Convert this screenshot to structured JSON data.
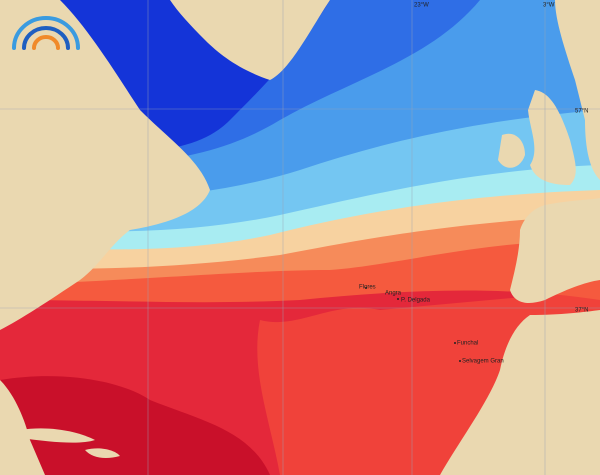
{
  "map": {
    "grid_labels": [
      "23°W",
      "3°W",
      "57°N",
      "37°N"
    ],
    "place_labels": [
      "Flores",
      "Angra",
      "P. Delgada",
      "Funchal",
      "Selvagem Gran"
    ]
  }
}
